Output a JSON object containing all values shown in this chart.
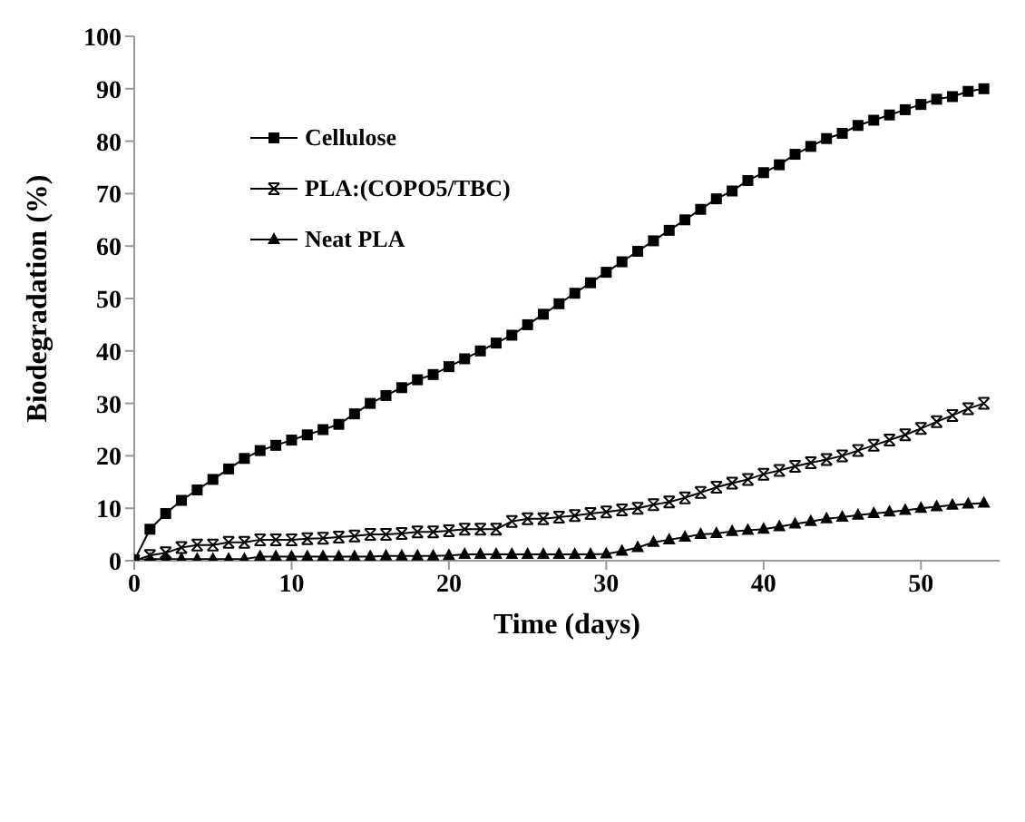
{
  "chart_data": {
    "type": "line",
    "xlabel": "Time (days)",
    "ylabel": "Biodegradation (%)",
    "x": [
      0,
      1,
      2,
      3,
      4,
      5,
      6,
      7,
      8,
      9,
      10,
      11,
      12,
      13,
      14,
      15,
      16,
      17,
      18,
      19,
      20,
      21,
      22,
      23,
      24,
      25,
      26,
      27,
      28,
      29,
      30,
      31,
      32,
      33,
      34,
      35,
      36,
      37,
      38,
      39,
      40,
      41,
      42,
      43,
      44,
      45,
      46,
      47,
      48,
      49,
      50,
      51,
      52,
      53,
      54
    ],
    "series": [
      {
        "name": "Cellulose",
        "color": "#000000",
        "marker": "square",
        "values": [
          0,
          6,
          9,
          11.5,
          13.5,
          15.5,
          17.5,
          19.5,
          21,
          22,
          23,
          24,
          25,
          26,
          28,
          30,
          31.5,
          33,
          34.5,
          35.5,
          37,
          38.5,
          40,
          41.5,
          43,
          45,
          47,
          49,
          51,
          53,
          55,
          57,
          59,
          61,
          63,
          65,
          67,
          69,
          70.5,
          72.5,
          74,
          75.5,
          77.5,
          79,
          80.5,
          81.5,
          83,
          84,
          85,
          86,
          87,
          88,
          88.5,
          89.5,
          90
        ]
      },
      {
        "name": "PLA:(COPO5/TBC)",
        "color": "#000000",
        "marker": "cross",
        "values": [
          0,
          1,
          1.5,
          2.5,
          3,
          3,
          3.5,
          3.5,
          4,
          4,
          4,
          4.2,
          4.3,
          4.5,
          4.7,
          5,
          5,
          5.2,
          5.5,
          5.5,
          5.7,
          6,
          6,
          6,
          7.5,
          8,
          8,
          8.3,
          8.6,
          9,
          9.3,
          9.7,
          10,
          10.7,
          11.2,
          12,
          13,
          14,
          14.8,
          15.5,
          16.5,
          17.2,
          18,
          18.7,
          19.3,
          20,
          21,
          22,
          23,
          24,
          25.2,
          26.5,
          27.7,
          29,
          30
        ]
      },
      {
        "name": "Neat PLA",
        "color": "#000000",
        "marker": "triangle",
        "values": [
          0,
          0.3,
          0.3,
          0.3,
          0.3,
          0.3,
          0.3,
          0.3,
          0.8,
          0.8,
          0.8,
          0.8,
          0.8,
          0.8,
          0.8,
          0.8,
          0.9,
          0.9,
          0.9,
          0.9,
          1,
          1.2,
          1.2,
          1.2,
          1.2,
          1.2,
          1.2,
          1.2,
          1.2,
          1.2,
          1.3,
          1.8,
          2.5,
          3.5,
          4,
          4.5,
          5,
          5.2,
          5.6,
          5.8,
          6,
          6.5,
          7,
          7.5,
          8,
          8.3,
          8.7,
          9,
          9.3,
          9.6,
          10,
          10.3,
          10.6,
          10.8,
          11
        ]
      }
    ],
    "xlim": [
      0,
      55
    ],
    "xticks": [
      0,
      10,
      20,
      30,
      40,
      50
    ],
    "ylim": [
      0,
      100
    ],
    "yticks": [
      0,
      10,
      20,
      30,
      40,
      50,
      60,
      70,
      80,
      90,
      100
    ],
    "grid": false,
    "legend": "top left",
    "line_style": "solid"
  }
}
